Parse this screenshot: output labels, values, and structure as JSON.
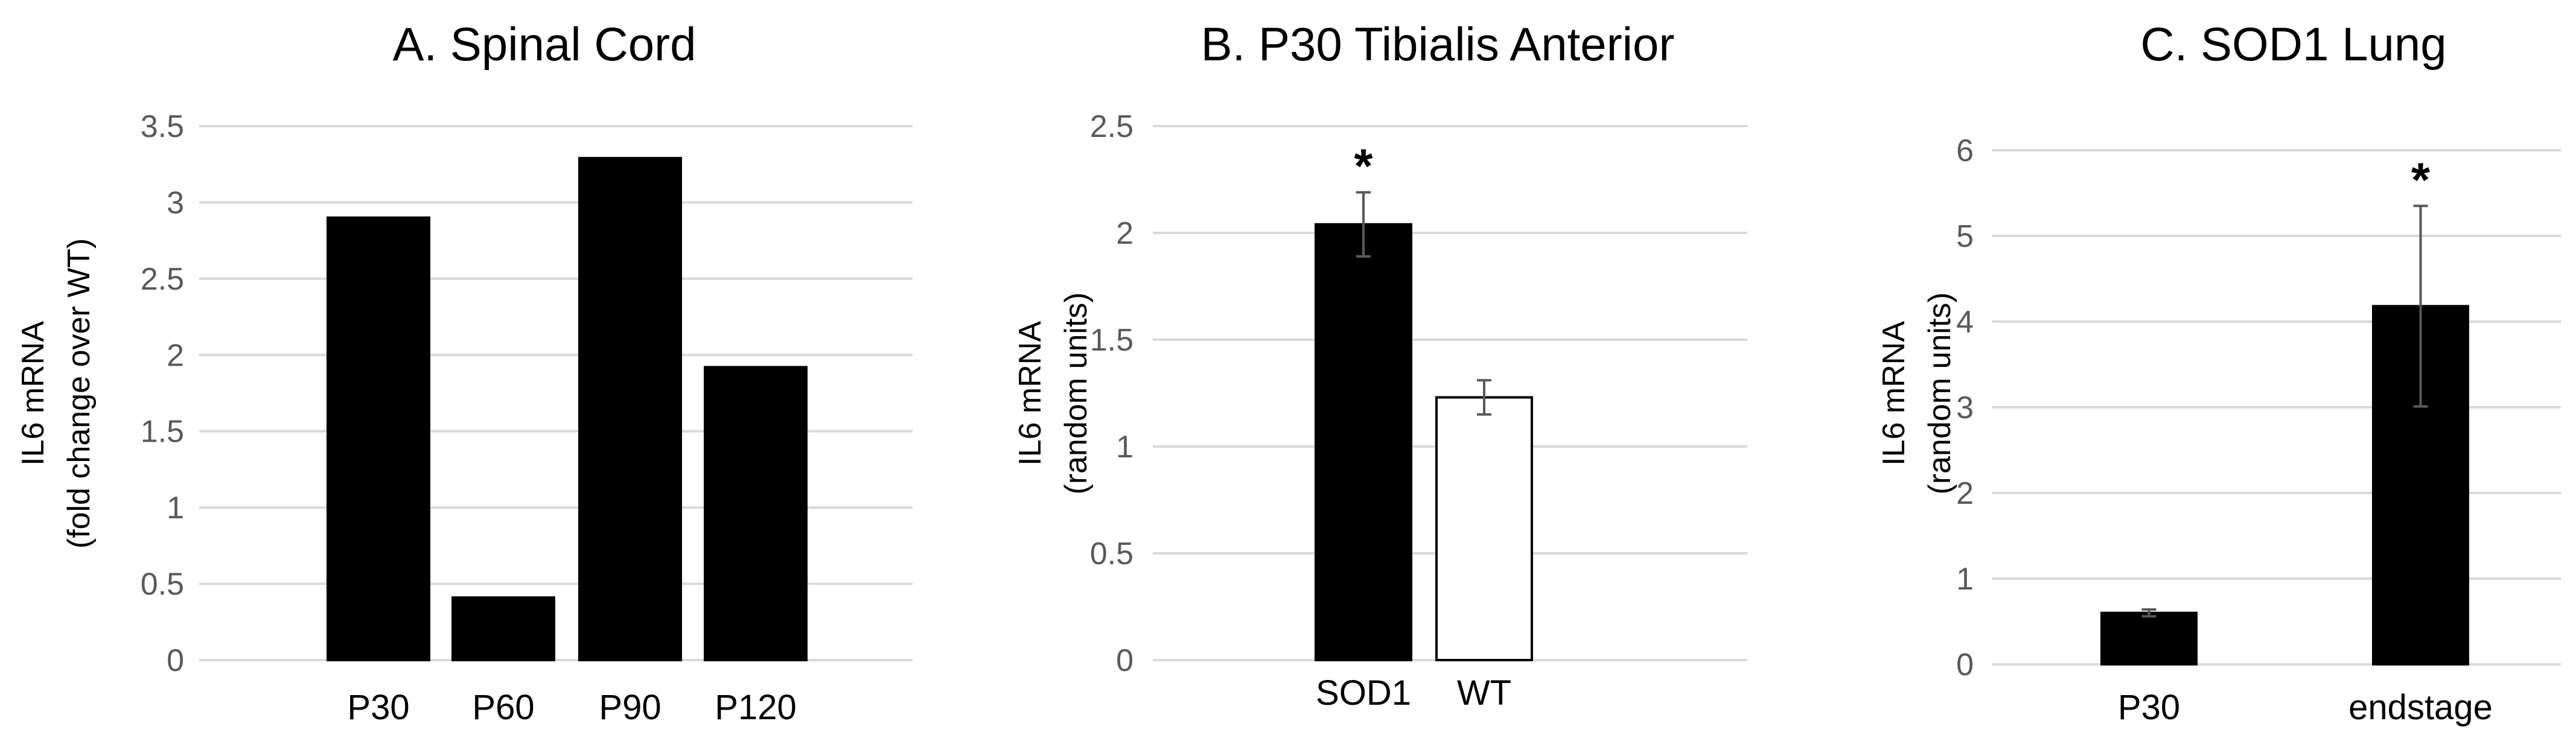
{
  "chart_data": [
    {
      "id": "A",
      "type": "bar",
      "title": "A.  Spinal Cord",
      "ylabel": [
        "IL6 mRNA",
        "(fold change over WT)"
      ],
      "ylim": [
        0,
        3.5
      ],
      "yticks": [
        0,
        0.5,
        1,
        1.5,
        2,
        2.5,
        3,
        3.5
      ],
      "ytick_labels": [
        "0",
        "0.5",
        "1",
        "1.5",
        "2",
        "2.5",
        "3",
        "3.5"
      ],
      "grid": true,
      "categories": [
        "P30",
        "P60",
        "P90",
        "P120"
      ],
      "values": [
        2.9,
        0.41,
        3.29,
        1.92
      ],
      "errors": [
        null,
        null,
        null,
        null
      ],
      "fills": [
        "#000000",
        "#000000",
        "#000000",
        "#000000"
      ],
      "annotations": [
        "",
        "",
        "",
        ""
      ]
    },
    {
      "id": "B",
      "type": "bar",
      "title": "B.  P30 Tibialis Anterior",
      "ylabel": [
        "IL6 mRNA",
        "(random units)"
      ],
      "ylim": [
        0,
        2.5
      ],
      "yticks": [
        0,
        0.5,
        1,
        1.5,
        2,
        2.5
      ],
      "ytick_labels": [
        "0",
        "0.5",
        "1",
        "1.5",
        "2",
        "2.5"
      ],
      "grid": true,
      "categories": [
        "SOD1",
        "WT"
      ],
      "values": [
        2.04,
        1.23
      ],
      "errors": [
        0.15,
        0.08
      ],
      "fills": [
        "#000000",
        "#ffffff"
      ],
      "annotations": [
        "*",
        ""
      ]
    },
    {
      "id": "C",
      "type": "bar",
      "title": "C.  SOD1 Lung",
      "ylabel": [
        "IL6 mRNA",
        "(random units)"
      ],
      "ylim": [
        0,
        6
      ],
      "yticks": [
        0,
        1,
        2,
        3,
        4,
        5,
        6
      ],
      "ytick_labels": [
        "0",
        "1",
        "2",
        "3",
        "4",
        "5",
        "6"
      ],
      "grid": true,
      "categories": [
        "P30",
        "endstage"
      ],
      "values": [
        0.6,
        4.18
      ],
      "errors": [
        0.04,
        1.17
      ],
      "fills": [
        "#000000",
        "#000000"
      ],
      "annotations": [
        "",
        "*"
      ]
    }
  ]
}
